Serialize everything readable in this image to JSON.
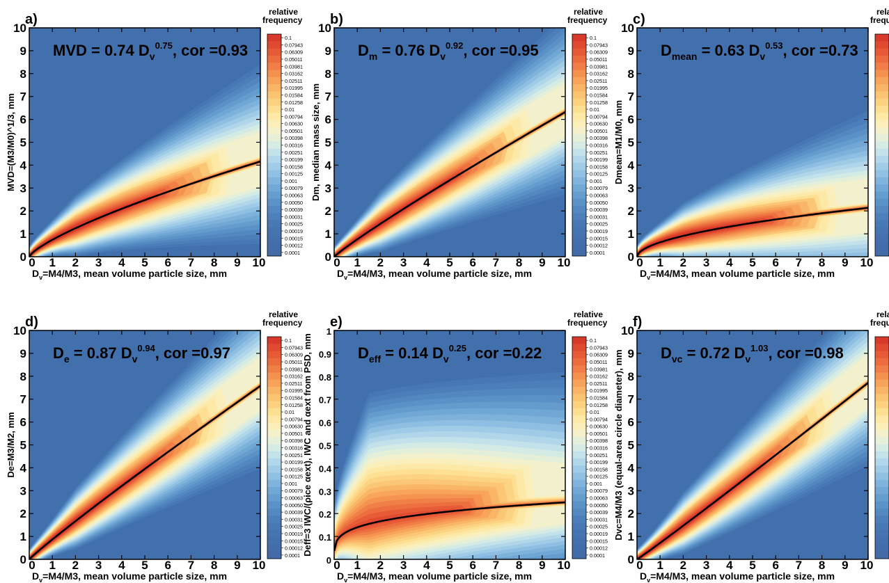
{
  "colorbar": {
    "title_line1": "relative",
    "title_line2": "frequency",
    "levels": [
      "0.1",
      "0.07943",
      "0.06309",
      "0.05011",
      "0.03981",
      "0.03162",
      "0.02511",
      "0.01995",
      "0.01584",
      "0.01258",
      "0.01",
      "0.00794",
      "0.00630",
      "0.00501",
      "0.00398",
      "0.00316",
      "0.00251",
      "0.00199",
      "0.00158",
      "0.00125",
      "0.001",
      "0.00079",
      "0.00063",
      "0.00050",
      "0.00039",
      "0.00031",
      "0.00025",
      "0.00019",
      "0.00015",
      "0.00012",
      "0.0001"
    ],
    "colors": [
      "#d73a2a",
      "#e04a30",
      "#e65a36",
      "#ec6c3e",
      "#f07e46",
      "#f4914f",
      "#f7a35a",
      "#f9b466",
      "#fbc473",
      "#fcd281",
      "#fddf92",
      "#fde8a5",
      "#fbeeb8",
      "#f3f0cb",
      "#e6efd8",
      "#d6ebe4",
      "#c4e2ea",
      "#b2d7ea",
      "#a1cce7",
      "#90c0e2",
      "#80b4dc",
      "#72a8d5",
      "#659dce",
      "#5b92c7",
      "#5388c0",
      "#4d80ba",
      "#4979b5",
      "#4674b1",
      "#4470ad",
      "#436daa",
      "#426ba8"
    ],
    "background_color": "#4270ad"
  },
  "shared": {
    "xlabel": "Dᵥ=M4/M3, mean volume particle size, mm",
    "xlabel_main": "D",
    "xlabel_sub": "v",
    "xlabel_rest": "=M4/M3, mean volume particle size, mm",
    "x_ticks": [
      "0",
      "1",
      "2",
      "3",
      "4",
      "5",
      "6",
      "7",
      "8",
      "9",
      "10"
    ]
  },
  "panels": [
    {
      "label": "a)",
      "formula_main": "MVD = 0.74 D",
      "formula_sub": "",
      "formula_exp": "0.75",
      "formula_cor": ", cor =0.93",
      "ylabel": "MVD=(M3/M0)^1/3, mm",
      "y_ticks": [
        "0",
        "1",
        "2",
        "3",
        "4",
        "5",
        "6",
        "7",
        "8",
        "9",
        "10"
      ]
    },
    {
      "label": "b)",
      "formula_main": "D",
      "formula_sub": "m",
      "formula_exp": "0.92",
      "formula_cor": ", cor =0.95",
      "formula_mid": " = 0.76 D",
      "ylabel": "Dm, median mass size, mm",
      "y_ticks": [
        "0",
        "1",
        "2",
        "3",
        "4",
        "5",
        "6",
        "7",
        "8",
        "9",
        "10"
      ]
    },
    {
      "label": "c)",
      "formula_main": "D",
      "formula_sub": "mean",
      "formula_exp": "0.53",
      "formula_cor": ", cor =0.73",
      "formula_mid": " = 0.63 D",
      "ylabel": "Dmean=M1/M0, mm",
      "y_ticks": [
        "0",
        "1",
        "2",
        "3",
        "4",
        "5",
        "6",
        "7",
        "8",
        "9",
        "10"
      ]
    },
    {
      "label": "d)",
      "formula_main": "D",
      "formula_sub": "e",
      "formula_exp": "0.94",
      "formula_cor": ", cor =0.97",
      "formula_mid": " = 0.87 D",
      "ylabel": "De=M3/M2,  mm",
      "y_ticks": [
        "0",
        "1",
        "2",
        "3",
        "4",
        "5",
        "6",
        "7",
        "8",
        "9",
        "10"
      ]
    },
    {
      "label": "e)",
      "formula_main": "D",
      "formula_sub": "eff",
      "formula_exp": "0.25",
      "formula_cor": ", cor =0.22",
      "formula_mid": " = 0.14 D",
      "ylabel": "Deff=3 IWC/(ρice αext), IWC and αext from PSD, mm",
      "y_ticks": [
        "0",
        "0.1",
        "0.2",
        "0.3",
        "0.4",
        "0.5",
        "0.6",
        "0.7",
        "0.8",
        "0.9",
        "1"
      ]
    },
    {
      "label": "f)",
      "formula_main": "D",
      "formula_sub": "vc",
      "formula_exp": "1.03",
      "formula_cor": ", cor =0.98",
      "formula_mid": " = 0.72 D",
      "ylabel": "Dvc=M4/M3 (equal-area circle diameter), mm",
      "y_ticks": [
        "0",
        "1",
        "2",
        "3",
        "4",
        "5",
        "6",
        "7",
        "8",
        "9",
        "10"
      ]
    }
  ],
  "chart_data": [
    {
      "type": "heatmap",
      "title": "a)",
      "xlabel": "Dv=M4/M3, mean volume particle size, mm",
      "ylabel": "MVD=(M3/M0)^1/3, mm",
      "xlim": [
        0,
        10
      ],
      "ylim": [
        0,
        10
      ],
      "fit": {
        "a": 0.74,
        "b": 0.75,
        "cor": 0.93
      },
      "density_peak": {
        "x": 1.2,
        "y": 1.0
      }
    },
    {
      "type": "heatmap",
      "title": "b)",
      "xlabel": "Dv=M4/M3, mean volume particle size, mm",
      "ylabel": "Dm, median mass size, mm",
      "xlim": [
        0,
        10
      ],
      "ylim": [
        0,
        10
      ],
      "fit": {
        "a": 0.76,
        "b": 0.92,
        "cor": 0.95
      },
      "density_peak": {
        "x": 1.0,
        "y": 0.8
      }
    },
    {
      "type": "heatmap",
      "title": "c)",
      "xlabel": "Dv=M4/M3, mean volume particle size, mm",
      "ylabel": "Dmean=M1/M0, mm",
      "xlim": [
        0,
        10
      ],
      "ylim": [
        0,
        10
      ],
      "fit": {
        "a": 0.63,
        "b": 0.53,
        "cor": 0.73
      },
      "density_peak": {
        "x": 1.2,
        "y": 0.8
      }
    },
    {
      "type": "heatmap",
      "title": "d)",
      "xlabel": "Dv=M4/M3, mean volume particle size, mm",
      "ylabel": "De=M3/M2, mm",
      "xlim": [
        0,
        10
      ],
      "ylim": [
        0,
        10
      ],
      "fit": {
        "a": 0.87,
        "b": 0.94,
        "cor": 0.97
      },
      "density_peak": {
        "x": 1.0,
        "y": 0.9
      }
    },
    {
      "type": "heatmap",
      "title": "e)",
      "xlabel": "Dv=M4/M3, mean volume particle size, mm",
      "ylabel": "Deff=3 IWC/(ρice αext), IWC and αext from PSD, mm",
      "xlim": [
        0,
        10
      ],
      "ylim": [
        0,
        1
      ],
      "fit": {
        "a": 0.14,
        "b": 0.25,
        "cor": 0.22
      },
      "density_peak": {
        "x": 1.2,
        "y": 0.17
      }
    },
    {
      "type": "heatmap",
      "title": "f)",
      "xlabel": "Dv=M4/M3, mean volume particle size, mm",
      "ylabel": "Dvc=M4/M3 (equal-area circle diameter), mm",
      "xlim": [
        0,
        10
      ],
      "ylim": [
        0,
        10
      ],
      "fit": {
        "a": 0.72,
        "b": 1.03,
        "cor": 0.98
      },
      "density_peak": {
        "x": 1.0,
        "y": 0.8
      }
    }
  ]
}
